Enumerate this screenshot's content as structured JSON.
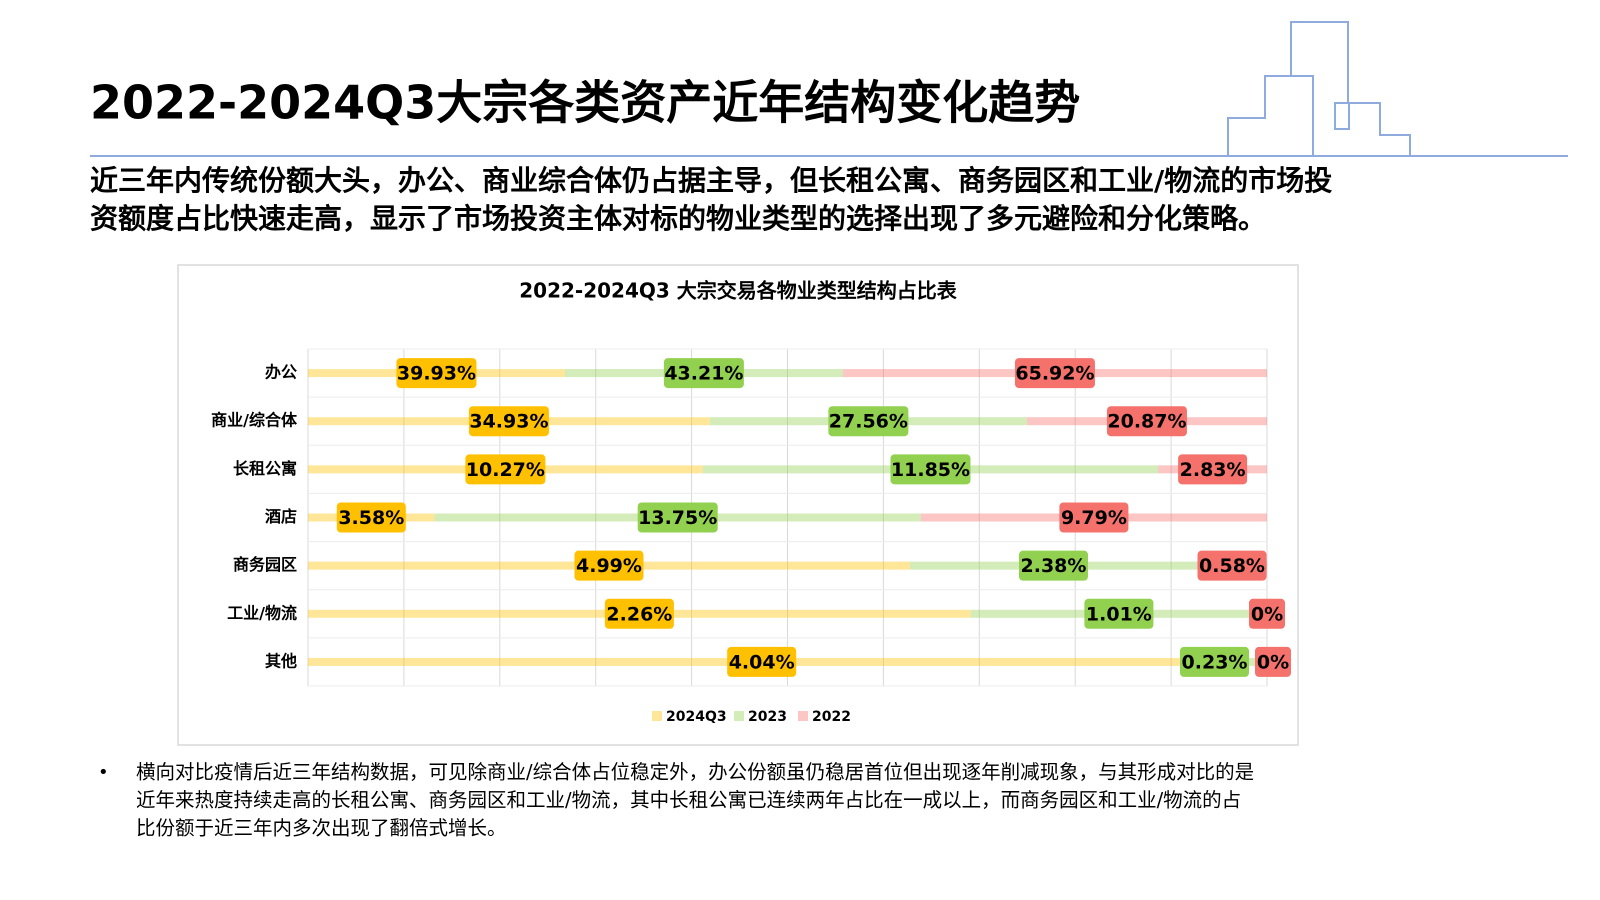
{
  "header": {
    "title": "2022-2024Q3大宗各类资产近年结构变化趋势",
    "subtitle": [
      "近三年内传统份额大头，办公、商业综合体仍占据主导，但长租公寓、商务园区和工业/物流的市场投",
      "资额度占比快速走高，显示了市场投资主体对标的物业类型的选择出现了多元避险和分化策略。"
    ]
  },
  "chart_data": {
    "type": "bar",
    "orientation": "horizontal",
    "stack": "percent",
    "title": "2022-2024Q3 大宗交易各物业类型结构占比表",
    "categories": [
      "办公",
      "商业/综合体",
      "长租公寓",
      "酒店",
      "商务园区",
      "工业/物流",
      "其他"
    ],
    "series": [
      {
        "name": "2024Q3",
        "color": "#ffc000",
        "values": [
          39.93,
          34.93,
          10.27,
          3.58,
          4.99,
          2.26,
          4.04
        ],
        "value_labels": [
          "39.93%",
          "34.93%",
          "10.27%",
          "3.58%",
          "4.99%",
          "2.26%",
          "4.04%"
        ]
      },
      {
        "name": "2023",
        "color": "#92d050",
        "values": [
          43.21,
          27.56,
          11.85,
          13.75,
          2.38,
          1.01,
          0.23
        ],
        "value_labels": [
          "43.21%",
          "27.56%",
          "11.85%",
          "13.75%",
          "2.38%",
          "1.01%",
          "0.23%"
        ]
      },
      {
        "name": "2022",
        "color": "#f4716c",
        "values": [
          65.92,
          20.87,
          2.83,
          9.79,
          0.58,
          0,
          0
        ],
        "value_labels": [
          "65.92%",
          "20.87%",
          "2.83%",
          "9.79%",
          "0.58%",
          "0%",
          "0%"
        ]
      }
    ],
    "grid": true,
    "legend": "bottom"
  },
  "notes": [
    "横向对比疫情后近三年结构数据，可见除商业/综合体占位稳定外，办公份额虽仍稳居首位但出现逐年削减现象，与其形成对比的是",
    "近年来热度持续走高的长租公寓、商务园区和工业/物流，其中长租公寓已连续两年占比在一成以上，而商务园区和工业/物流的占",
    "比份额于近三年内多次出现了翻倍式增长。"
  ]
}
